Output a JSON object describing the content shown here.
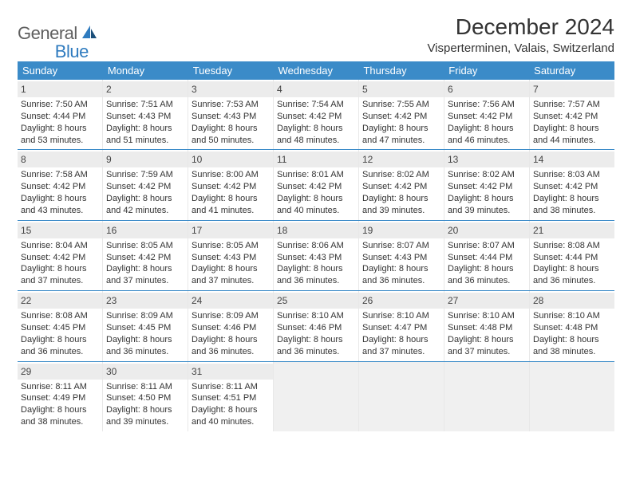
{
  "brand": {
    "part1": "General",
    "part2": "Blue"
  },
  "title": "December 2024",
  "location": "Visperterminen, Valais, Switzerland",
  "colors": {
    "header_bg": "#3b8bc8",
    "header_text": "#ffffff",
    "daynum_bg": "#ececec",
    "week_border": "#3b8bc8",
    "brand_gray": "#5f5f5f",
    "brand_blue": "#2f7bbf",
    "text": "#333333",
    "empty_bg": "#f0f0f0"
  },
  "day_headers": [
    "Sunday",
    "Monday",
    "Tuesday",
    "Wednesday",
    "Thursday",
    "Friday",
    "Saturday"
  ],
  "weeks": [
    [
      {
        "n": "1",
        "sr": "7:50 AM",
        "ss": "4:44 PM",
        "dl": "8 hours and 53 minutes."
      },
      {
        "n": "2",
        "sr": "7:51 AM",
        "ss": "4:43 PM",
        "dl": "8 hours and 51 minutes."
      },
      {
        "n": "3",
        "sr": "7:53 AM",
        "ss": "4:43 PM",
        "dl": "8 hours and 50 minutes."
      },
      {
        "n": "4",
        "sr": "7:54 AM",
        "ss": "4:42 PM",
        "dl": "8 hours and 48 minutes."
      },
      {
        "n": "5",
        "sr": "7:55 AM",
        "ss": "4:42 PM",
        "dl": "8 hours and 47 minutes."
      },
      {
        "n": "6",
        "sr": "7:56 AM",
        "ss": "4:42 PM",
        "dl": "8 hours and 46 minutes."
      },
      {
        "n": "7",
        "sr": "7:57 AM",
        "ss": "4:42 PM",
        "dl": "8 hours and 44 minutes."
      }
    ],
    [
      {
        "n": "8",
        "sr": "7:58 AM",
        "ss": "4:42 PM",
        "dl": "8 hours and 43 minutes."
      },
      {
        "n": "9",
        "sr": "7:59 AM",
        "ss": "4:42 PM",
        "dl": "8 hours and 42 minutes."
      },
      {
        "n": "10",
        "sr": "8:00 AM",
        "ss": "4:42 PM",
        "dl": "8 hours and 41 minutes."
      },
      {
        "n": "11",
        "sr": "8:01 AM",
        "ss": "4:42 PM",
        "dl": "8 hours and 40 minutes."
      },
      {
        "n": "12",
        "sr": "8:02 AM",
        "ss": "4:42 PM",
        "dl": "8 hours and 39 minutes."
      },
      {
        "n": "13",
        "sr": "8:02 AM",
        "ss": "4:42 PM",
        "dl": "8 hours and 39 minutes."
      },
      {
        "n": "14",
        "sr": "8:03 AM",
        "ss": "4:42 PM",
        "dl": "8 hours and 38 minutes."
      }
    ],
    [
      {
        "n": "15",
        "sr": "8:04 AM",
        "ss": "4:42 PM",
        "dl": "8 hours and 37 minutes."
      },
      {
        "n": "16",
        "sr": "8:05 AM",
        "ss": "4:42 PM",
        "dl": "8 hours and 37 minutes."
      },
      {
        "n": "17",
        "sr": "8:05 AM",
        "ss": "4:43 PM",
        "dl": "8 hours and 37 minutes."
      },
      {
        "n": "18",
        "sr": "8:06 AM",
        "ss": "4:43 PM",
        "dl": "8 hours and 36 minutes."
      },
      {
        "n": "19",
        "sr": "8:07 AM",
        "ss": "4:43 PM",
        "dl": "8 hours and 36 minutes."
      },
      {
        "n": "20",
        "sr": "8:07 AM",
        "ss": "4:44 PM",
        "dl": "8 hours and 36 minutes."
      },
      {
        "n": "21",
        "sr": "8:08 AM",
        "ss": "4:44 PM",
        "dl": "8 hours and 36 minutes."
      }
    ],
    [
      {
        "n": "22",
        "sr": "8:08 AM",
        "ss": "4:45 PM",
        "dl": "8 hours and 36 minutes."
      },
      {
        "n": "23",
        "sr": "8:09 AM",
        "ss": "4:45 PM",
        "dl": "8 hours and 36 minutes."
      },
      {
        "n": "24",
        "sr": "8:09 AM",
        "ss": "4:46 PM",
        "dl": "8 hours and 36 minutes."
      },
      {
        "n": "25",
        "sr": "8:10 AM",
        "ss": "4:46 PM",
        "dl": "8 hours and 36 minutes."
      },
      {
        "n": "26",
        "sr": "8:10 AM",
        "ss": "4:47 PM",
        "dl": "8 hours and 37 minutes."
      },
      {
        "n": "27",
        "sr": "8:10 AM",
        "ss": "4:48 PM",
        "dl": "8 hours and 37 minutes."
      },
      {
        "n": "28",
        "sr": "8:10 AM",
        "ss": "4:48 PM",
        "dl": "8 hours and 38 minutes."
      }
    ],
    [
      {
        "n": "29",
        "sr": "8:11 AM",
        "ss": "4:49 PM",
        "dl": "8 hours and 38 minutes."
      },
      {
        "n": "30",
        "sr": "8:11 AM",
        "ss": "4:50 PM",
        "dl": "8 hours and 39 minutes."
      },
      {
        "n": "31",
        "sr": "8:11 AM",
        "ss": "4:51 PM",
        "dl": "8 hours and 40 minutes."
      },
      null,
      null,
      null,
      null
    ]
  ],
  "labels": {
    "sunrise": "Sunrise:",
    "sunset": "Sunset:",
    "daylight": "Daylight:"
  }
}
